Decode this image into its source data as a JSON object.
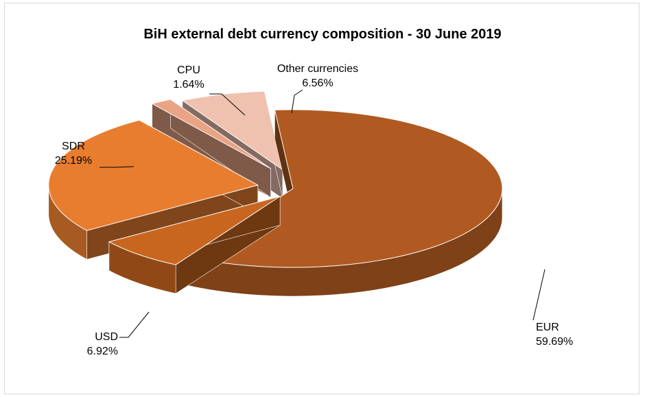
{
  "chart_data": {
    "type": "pie",
    "title": "BiH external debt currency composition - 30 June 2019",
    "slices": [
      {
        "name": "EUR",
        "value": 59.69,
        "value_label": "59.69%",
        "color": "#b05a21"
      },
      {
        "name": "USD",
        "value": 6.92,
        "value_label": "6.92%",
        "color": "#c8661f"
      },
      {
        "name": "SDR",
        "value": 25.19,
        "value_label": "25.19%",
        "color": "#e87d2f"
      },
      {
        "name": "CPU",
        "value": 1.64,
        "value_label": "1.64%",
        "color": "#e9a385"
      },
      {
        "name": "Other currencies",
        "value": 6.56,
        "value_label": "6.56%",
        "color": "#efc2b0"
      }
    ],
    "style": "3d-exploded",
    "legend": "none"
  }
}
